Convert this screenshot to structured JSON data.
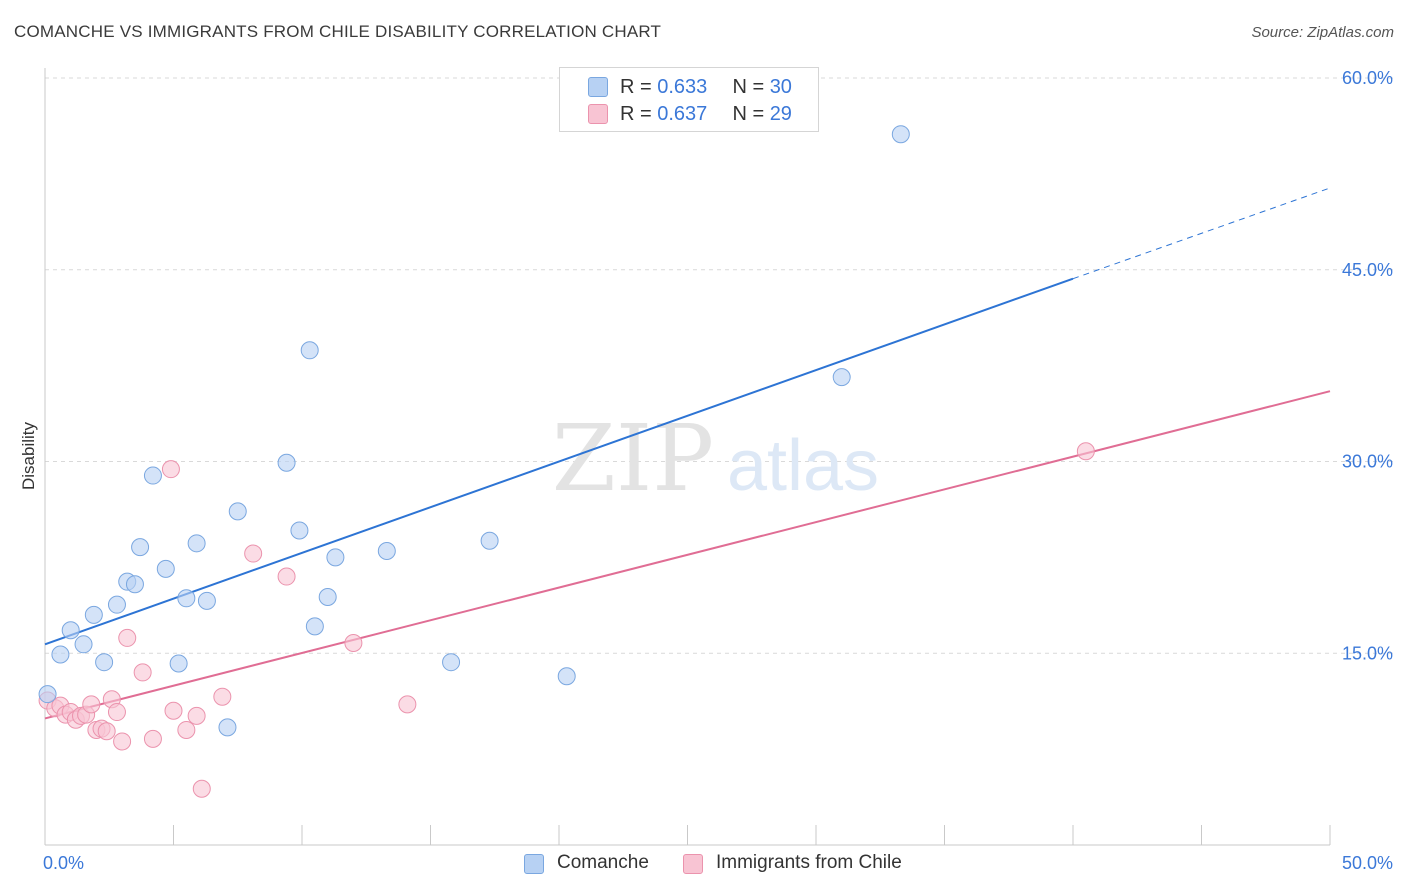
{
  "title": "COMANCHE VS IMMIGRANTS FROM CHILE DISABILITY CORRELATION CHART",
  "source": "Source: ZipAtlas.com",
  "watermark": {
    "zip": "ZIP",
    "atlas": "atlas"
  },
  "legend": {
    "r_label": "R = ",
    "n_label": "N = ",
    "series": [
      {
        "name": "Comanche",
        "r": "0.633",
        "n": "30"
      },
      {
        "name": "Immigrants from Chile",
        "r": "0.637",
        "n": "29"
      }
    ]
  },
  "colors": {
    "blue_fill": "#b7d1f3",
    "blue_stroke": "#7aa7e0",
    "blue_line": "#2d74d4",
    "pink_fill": "#f8c4d3",
    "pink_stroke": "#eb93ad",
    "pink_line": "#e06d94",
    "accent_text": "#3b78d8",
    "grid": "#d9d9d9"
  },
  "chart_data": {
    "type": "scatter",
    "title": "COMANCHE VS IMMIGRANTS FROM CHILE DISABILITY CORRELATION CHART",
    "xlabel": "",
    "ylabel": "Disability",
    "xlim": [
      0,
      50
    ],
    "ylim": [
      0,
      60
    ],
    "x_tick_labels": [
      "0.0%",
      "50.0%"
    ],
    "y_ticks": [
      15,
      30,
      45,
      60
    ],
    "y_tick_labels": [
      "15.0%",
      "30.0%",
      "45.0%",
      "60.0%"
    ],
    "grid": true,
    "legend_position": "top-center",
    "series": [
      {
        "name": "Comanche",
        "r": 0.633,
        "n": 30,
        "points": [
          [
            0.1,
            11.8
          ],
          [
            0.6,
            14.9
          ],
          [
            1.0,
            16.8
          ],
          [
            1.5,
            15.7
          ],
          [
            1.9,
            18.0
          ],
          [
            2.3,
            14.3
          ],
          [
            2.8,
            18.8
          ],
          [
            3.2,
            20.6
          ],
          [
            3.5,
            20.4
          ],
          [
            3.7,
            23.3
          ],
          [
            4.2,
            28.9
          ],
          [
            4.7,
            21.6
          ],
          [
            5.2,
            14.2
          ],
          [
            5.5,
            19.3
          ],
          [
            5.9,
            23.6
          ],
          [
            6.3,
            19.1
          ],
          [
            7.1,
            9.2
          ],
          [
            7.5,
            26.1
          ],
          [
            9.4,
            29.9
          ],
          [
            9.9,
            24.6
          ],
          [
            10.3,
            38.7
          ],
          [
            10.5,
            17.1
          ],
          [
            11.0,
            19.4
          ],
          [
            11.3,
            22.5
          ],
          [
            13.3,
            23.0
          ],
          [
            15.8,
            14.3
          ],
          [
            17.3,
            23.8
          ],
          [
            20.3,
            13.2
          ],
          [
            31.0,
            36.6
          ],
          [
            33.3,
            55.6
          ]
        ],
        "trend": {
          "x": [
            0,
            40
          ],
          "y": [
            15.7,
            44.3
          ]
        },
        "trend_extension": {
          "x": [
            40,
            50
          ],
          "y": [
            44.3,
            51.4
          ]
        }
      },
      {
        "name": "Immigrants from Chile",
        "r": 0.637,
        "n": 29,
        "points": [
          [
            0.1,
            11.3
          ],
          [
            0.4,
            10.7
          ],
          [
            0.6,
            10.9
          ],
          [
            0.8,
            10.2
          ],
          [
            1.0,
            10.4
          ],
          [
            1.2,
            9.8
          ],
          [
            1.4,
            10.1
          ],
          [
            1.6,
            10.2
          ],
          [
            1.8,
            11.0
          ],
          [
            2.0,
            9.0
          ],
          [
            2.2,
            9.1
          ],
          [
            2.4,
            8.9
          ],
          [
            2.6,
            11.4
          ],
          [
            2.8,
            10.4
          ],
          [
            3.0,
            8.1
          ],
          [
            3.2,
            16.2
          ],
          [
            3.8,
            13.5
          ],
          [
            4.2,
            8.3
          ],
          [
            4.9,
            29.4
          ],
          [
            5.0,
            10.5
          ],
          [
            5.5,
            9.0
          ],
          [
            5.9,
            10.1
          ],
          [
            6.1,
            4.4
          ],
          [
            6.9,
            11.6
          ],
          [
            8.1,
            22.8
          ],
          [
            9.4,
            21.0
          ],
          [
            12.0,
            15.8
          ],
          [
            14.1,
            11.0
          ],
          [
            40.5,
            30.8
          ]
        ],
        "trend": {
          "x": [
            0,
            50
          ],
          "y": [
            9.9,
            35.5
          ]
        }
      }
    ]
  }
}
